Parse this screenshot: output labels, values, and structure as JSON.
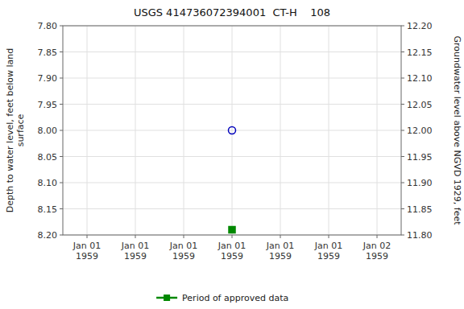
{
  "chart_data": {
    "type": "scatter",
    "title": "USGS 414736072394001  CT-H    108",
    "y_label": "Depth to water level, feet below land\nsurface",
    "y2_label": "Groundwater level above NGVD 1929, feet",
    "categories": [
      "Jan 01\n1959",
      "Jan 01\n1959",
      "Jan 01\n1959",
      "Jan 01\n1959",
      "Jan 01\n1959",
      "Jan 01\n1959",
      "Jan 02\n1959"
    ],
    "series": [
      {
        "color": "#0000bb",
        "marker": "circle-open",
        "values": [
          null,
          null,
          null,
          8.0,
          null,
          null,
          null
        ]
      },
      {
        "name": "Period of approved data",
        "color": "#008800",
        "marker": "square",
        "values": [
          null,
          null,
          null,
          8.19,
          null,
          null,
          null
        ]
      }
    ],
    "ylim": [
      8.2,
      7.8
    ],
    "yticks": [
      {
        "value": 7.8,
        "label": "7.80"
      },
      7.85,
      {
        "value": 7.9,
        "label": "7.90"
      },
      7.95,
      {
        "value": 8.0,
        "label": "8.00"
      },
      8.05,
      {
        "value": 8.1,
        "label": "8.10"
      },
      8.15,
      {
        "value": 8.2,
        "label": "8.20"
      }
    ],
    "y2lim": [
      11.8,
      12.2
    ],
    "y2ticks": [
      {
        "value": 12.2,
        "label": "12.20"
      },
      12.15,
      {
        "value": 12.1,
        "label": "12.10"
      },
      12.05,
      {
        "value": 12.0,
        "label": "12.00"
      },
      11.95,
      {
        "value": 11.9,
        "label": "11.90"
      },
      11.85,
      {
        "value": 11.8,
        "label": "11.80"
      }
    ],
    "grid": true,
    "legend": "bottom"
  }
}
